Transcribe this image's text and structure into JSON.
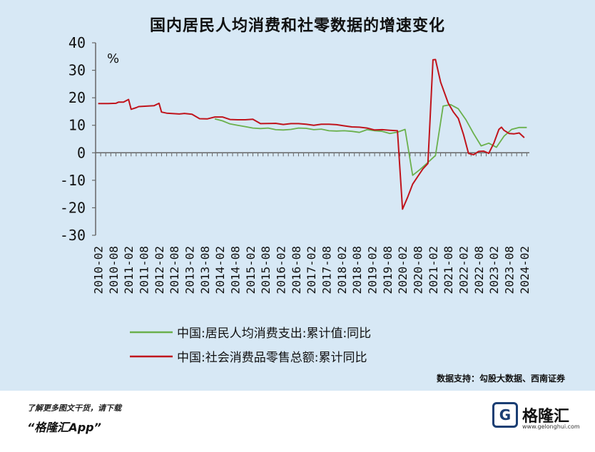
{
  "title": "国内居民人均消费和社零数据的增速变化",
  "source": "数据支持：勾股大数据、西南证券",
  "footer": {
    "cta_line1": "了解更多图文干货，请下载",
    "cta_line2": "“格隆汇App”",
    "brand_name": "格隆汇",
    "brand_url": "www.gelonghui.com"
  },
  "colors": {
    "green": "#6ab04c",
    "red": "#c0141c"
  },
  "chart_data": {
    "type": "line",
    "title": "国内居民人均消费和社零数据的增速变化",
    "unit_label": "%",
    "ylim": [
      -30,
      40
    ],
    "yticks": [
      40,
      30,
      20,
      10,
      0,
      -10,
      -20,
      -30
    ],
    "xlim": [
      "2010-01",
      "2024-04"
    ],
    "xticks": [
      "2010-02",
      "2010-08",
      "2011-02",
      "2011-08",
      "2012-02",
      "2012-08",
      "2013-02",
      "2013-08",
      "2014-02",
      "2014-08",
      "2015-02",
      "2015-08",
      "2016-02",
      "2016-08",
      "2017-02",
      "2017-08",
      "2018-02",
      "2018-08",
      "2019-02",
      "2019-08",
      "2020-02",
      "2020-08",
      "2021-02",
      "2021-08",
      "2022-02",
      "2022-08",
      "2023-02",
      "2023-08",
      "2024-02"
    ],
    "legend_position": "bottom",
    "series": [
      {
        "name": "中国:居民人均消费支出:累计值:同比",
        "color": "#6ab04c",
        "points": [
          [
            "2013-12",
            12.3
          ],
          [
            "2014-03",
            11.6
          ],
          [
            "2014-06",
            10.5
          ],
          [
            "2014-09",
            10.0
          ],
          [
            "2014-12",
            9.5
          ],
          [
            "2015-03",
            9.0
          ],
          [
            "2015-06",
            8.8
          ],
          [
            "2015-09",
            9.0
          ],
          [
            "2015-12",
            8.4
          ],
          [
            "2016-03",
            8.3
          ],
          [
            "2016-06",
            8.5
          ],
          [
            "2016-09",
            9.0
          ],
          [
            "2016-12",
            8.9
          ],
          [
            "2017-03",
            8.4
          ],
          [
            "2017-06",
            8.6
          ],
          [
            "2017-09",
            8.0
          ],
          [
            "2017-12",
            7.9
          ],
          [
            "2018-03",
            8.0
          ],
          [
            "2018-06",
            7.8
          ],
          [
            "2018-09",
            7.4
          ],
          [
            "2018-12",
            8.4
          ],
          [
            "2019-03",
            8.0
          ],
          [
            "2019-06",
            7.8
          ],
          [
            "2019-09",
            7.0
          ],
          [
            "2019-12",
            7.5
          ],
          [
            "2020-03",
            8.5
          ],
          [
            "2020-06",
            -8.2
          ],
          [
            "2020-09",
            -6.0
          ],
          [
            "2020-12",
            -3.5
          ],
          [
            "2021-03",
            -1.0
          ],
          [
            "2021-06",
            17.0
          ],
          [
            "2021-09",
            17.5
          ],
          [
            "2021-12",
            16.0
          ],
          [
            "2022-03",
            12.0
          ],
          [
            "2022-06",
            7.0
          ],
          [
            "2022-09",
            2.5
          ],
          [
            "2022-12",
            3.5
          ],
          [
            "2023-03",
            2.0
          ],
          [
            "2023-06",
            6.0
          ],
          [
            "2023-09",
            8.5
          ],
          [
            "2023-12",
            9.2
          ],
          [
            "2024-03",
            9.2
          ]
        ]
      },
      {
        "name": "中国:社会消费品零售总额:累计同比",
        "color": "#c0141c",
        "points": [
          [
            "2010-02",
            17.9
          ],
          [
            "2010-06",
            17.9
          ],
          [
            "2010-09",
            18.0
          ],
          [
            "2010-10",
            18.4
          ],
          [
            "2010-12",
            18.4
          ],
          [
            "2011-02",
            19.4
          ],
          [
            "2011-03",
            15.8
          ],
          [
            "2011-05",
            16.4
          ],
          [
            "2011-06",
            16.8
          ],
          [
            "2011-12",
            17.1
          ],
          [
            "2012-02",
            18.0
          ],
          [
            "2012-03",
            14.8
          ],
          [
            "2012-05",
            14.4
          ],
          [
            "2012-10",
            14.1
          ],
          [
            "2012-12",
            14.3
          ],
          [
            "2013-03",
            14.0
          ],
          [
            "2013-06",
            12.4
          ],
          [
            "2013-09",
            12.3
          ],
          [
            "2013-12",
            13.0
          ],
          [
            "2014-03",
            13.0
          ],
          [
            "2014-06",
            12.1
          ],
          [
            "2014-09",
            12.0
          ],
          [
            "2014-12",
            12.0
          ],
          [
            "2015-03",
            12.2
          ],
          [
            "2015-06",
            10.6
          ],
          [
            "2015-12",
            10.7
          ],
          [
            "2016-03",
            10.3
          ],
          [
            "2016-06",
            10.6
          ],
          [
            "2016-09",
            10.6
          ],
          [
            "2016-12",
            10.4
          ],
          [
            "2017-03",
            10.0
          ],
          [
            "2017-06",
            10.4
          ],
          [
            "2017-09",
            10.4
          ],
          [
            "2017-12",
            10.2
          ],
          [
            "2018-03",
            9.8
          ],
          [
            "2018-06",
            9.4
          ],
          [
            "2018-09",
            9.3
          ],
          [
            "2018-12",
            9.0
          ],
          [
            "2019-03",
            8.3
          ],
          [
            "2019-06",
            8.4
          ],
          [
            "2019-09",
            8.2
          ],
          [
            "2019-12",
            8.0
          ],
          [
            "2020-02",
            -20.5
          ],
          [
            "2020-04",
            -16.2
          ],
          [
            "2020-06",
            -11.4
          ],
          [
            "2020-08",
            -8.6
          ],
          [
            "2020-10",
            -5.9
          ],
          [
            "2020-12",
            -3.9
          ],
          [
            "2021-02",
            33.8
          ],
          [
            "2021-03",
            33.9
          ],
          [
            "2021-05",
            25.7
          ],
          [
            "2021-08",
            18.1
          ],
          [
            "2021-10",
            14.9
          ],
          [
            "2021-12",
            12.5
          ],
          [
            "2022-02",
            6.7
          ],
          [
            "2022-04",
            -0.2
          ],
          [
            "2022-06",
            -0.7
          ],
          [
            "2022-08",
            0.5
          ],
          [
            "2022-10",
            0.6
          ],
          [
            "2022-12",
            -0.2
          ],
          [
            "2023-02",
            3.5
          ],
          [
            "2023-04",
            8.5
          ],
          [
            "2023-05",
            9.3
          ],
          [
            "2023-06",
            8.2
          ],
          [
            "2023-08",
            7.0
          ],
          [
            "2023-10",
            6.9
          ],
          [
            "2023-12",
            7.2
          ],
          [
            "2024-02",
            5.5
          ]
        ]
      }
    ]
  }
}
